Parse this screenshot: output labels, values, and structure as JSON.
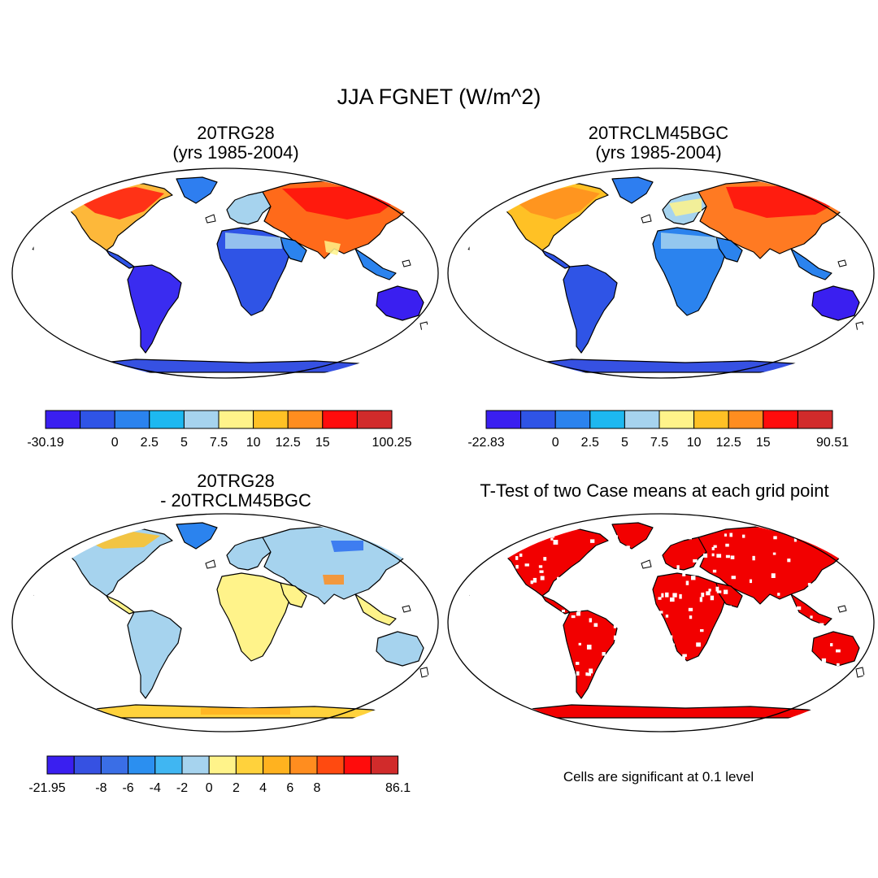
{
  "title": "JJA FGNET (W/m^2)",
  "colors": {
    "land_light_yellow": "#fff38a",
    "warm_yellow": "#ffd35a",
    "orange": "#ff9a2e",
    "red": "#ee2a1a",
    "light_blue": "#a8d4ee",
    "blue": "#2e7ef0",
    "deep_blue": "#3a2cf0",
    "significant_red": "#f20000"
  },
  "panels": [
    {
      "title_line1": "20TRG28",
      "title_line2": "(yrs 1985-2004)",
      "colorbar": {
        "colors": [
          "#3a1ff0",
          "#2f54e6",
          "#2b83ee",
          "#1db8f0",
          "#a6d3ee",
          "#fff38a",
          "#ffc125",
          "#ff8d1f",
          "#ff0c0c",
          "#d12b2b"
        ],
        "labels": [
          "-30.19",
          "0",
          "2.5",
          "5",
          "7.5",
          "10",
          "12.5",
          "15",
          "100.25"
        ],
        "label_boundaries": [
          0,
          2,
          3,
          4,
          5,
          6,
          7,
          8,
          10
        ]
      }
    },
    {
      "title_line1": "20TRCLM45BGC",
      "title_line2": "(yrs 1985-2004)",
      "colorbar": {
        "colors": [
          "#3a1ff0",
          "#2f54e6",
          "#2b83ee",
          "#1db8f0",
          "#a6d3ee",
          "#fff38a",
          "#ffc125",
          "#ff8d1f",
          "#ff0c0c",
          "#d12b2b"
        ],
        "labels": [
          "-22.83",
          "0",
          "2.5",
          "5",
          "7.5",
          "10",
          "12.5",
          "15",
          "90.51"
        ],
        "label_boundaries": [
          0,
          2,
          3,
          4,
          5,
          6,
          7,
          8,
          10
        ]
      }
    },
    {
      "title_line1": "20TRG28",
      "title_line2": "- 20TRCLM45BGC",
      "colorbar": {
        "colors": [
          "#3a1ff0",
          "#3651e2",
          "#3a6ee6",
          "#2b8ff0",
          "#40b6f2",
          "#a6d3ee",
          "#fff38a",
          "#ffd23c",
          "#ffb21f",
          "#ff8d1f",
          "#ff4a10",
          "#ff0c0c",
          "#d12b2b"
        ],
        "labels": [
          "-21.95",
          "-8",
          "-6",
          "-4",
          "-2",
          "0",
          "2",
          "4",
          "6",
          "8",
          "86.1"
        ],
        "label_boundaries": [
          0,
          2,
          3,
          4,
          5,
          6,
          7,
          8,
          9,
          10,
          13
        ]
      }
    },
    {
      "title_line1": "T-Test of two Case means at each grid point",
      "note": "Cells are significant at 0.1 level"
    }
  ]
}
